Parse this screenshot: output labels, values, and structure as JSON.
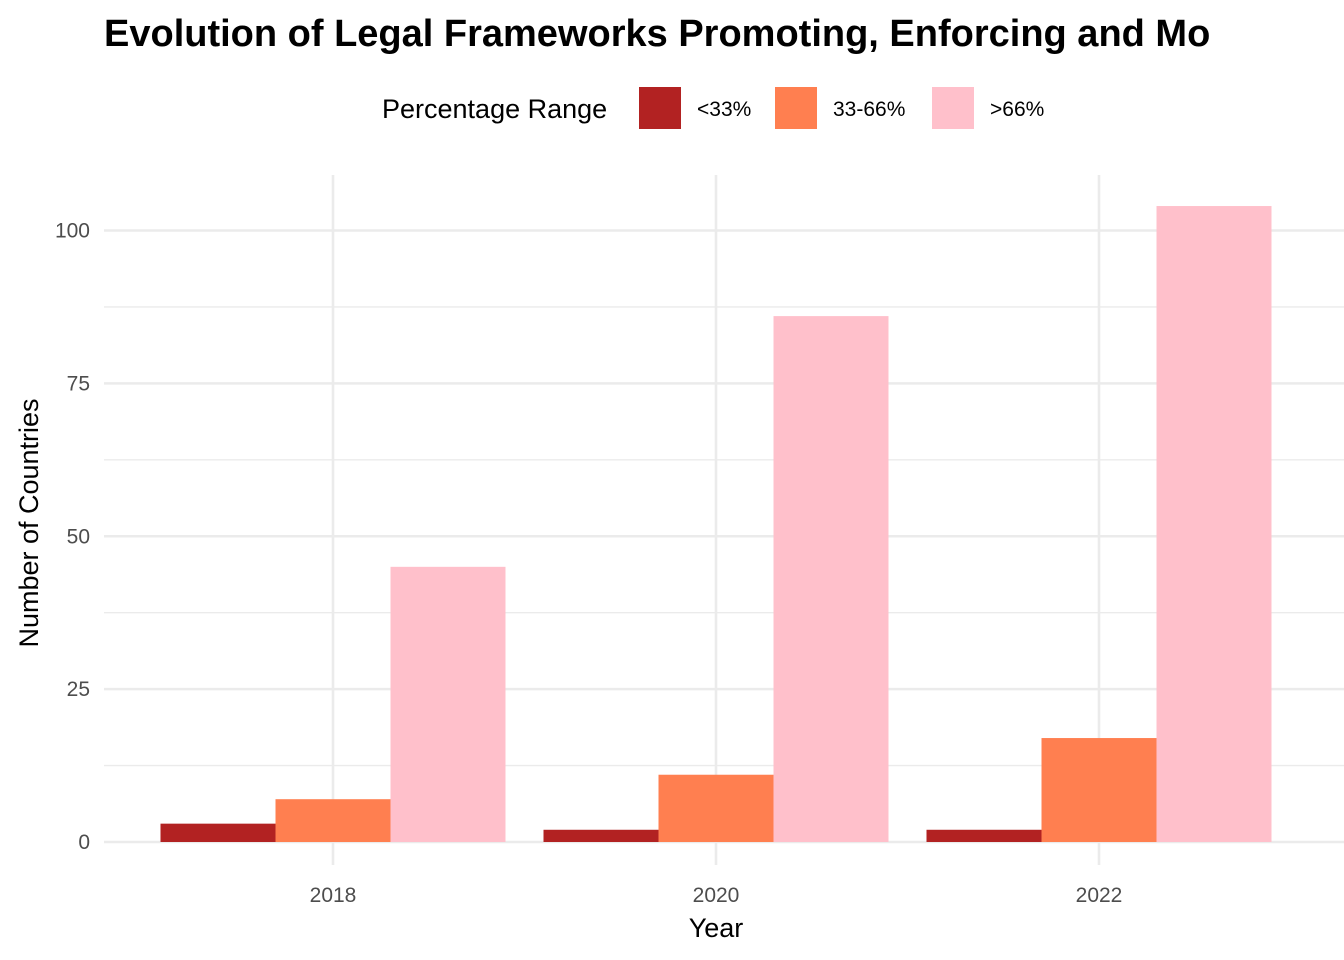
{
  "chart_data": {
    "type": "bar",
    "title": "Evolution of Legal Frameworks Promoting, Enforcing and Mo",
    "xlabel": "Year",
    "ylabel": "Number of Countries",
    "categories": [
      "2018",
      "2020",
      "2022"
    ],
    "series": [
      {
        "name": "<33%",
        "color": "#b22222",
        "values": [
          3,
          2,
          2
        ]
      },
      {
        "name": "33-66%",
        "color": "#ff7f50",
        "values": [
          7,
          11,
          17
        ]
      },
      {
        "name": ">66%",
        "color": "#ffc0cb",
        "values": [
          45,
          86,
          104
        ]
      }
    ],
    "ylim": [
      0,
      109
    ],
    "yticks": [
      0,
      25,
      50,
      75,
      100
    ],
    "grid": true,
    "legend": {
      "title": "Percentage Range",
      "placement": "top"
    }
  }
}
